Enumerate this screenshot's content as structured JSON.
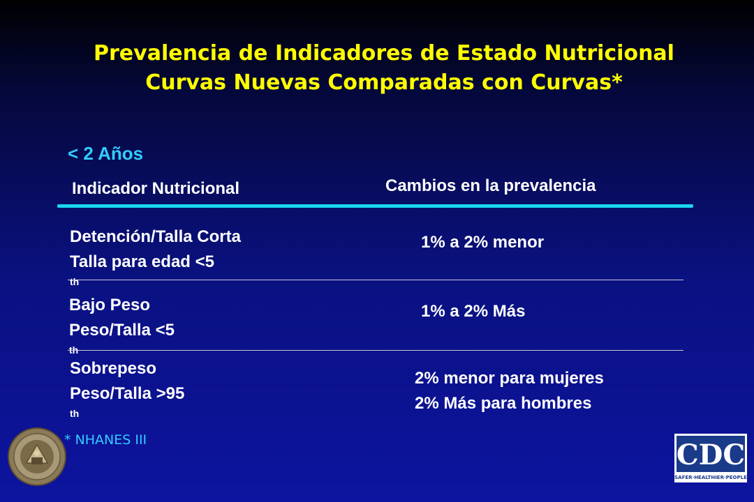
{
  "slide": {
    "title_line1": "Prevalencia de Indicadores de Estado Nutricional",
    "title_line2": "Curvas Nuevas Comparadas con Curvas",
    "title_star": "*",
    "age_group": "< 2 Años",
    "header_indicator": "Indicador Nutricional",
    "header_changes": "Cambios en la prevalencia",
    "rows": [
      {
        "indicator_name": "Detención/Talla Corta",
        "indicator_def": "Talla para edad <5",
        "indicator_sup": "th",
        "change_line1": "1% a 2% menor",
        "change_line2": ""
      },
      {
        "indicator_name": "Bajo Peso",
        "indicator_def": "Peso/Talla <5",
        "indicator_sup": "th",
        "change_line1": "1% a 2% Más",
        "change_line2": ""
      },
      {
        "indicator_name": "Sobrepeso",
        "indicator_def": "Peso/Talla >95",
        "indicator_sup": "th",
        "change_line1": "2% menor para mujeres",
        "change_line2": "2% Más para hombres"
      }
    ],
    "footnote": "* NHANES III",
    "cdc_logo_text": "CDC",
    "cdc_tagline": "SAFER·HEALTHIER·PEOPLE"
  },
  "colors": {
    "title": "#ffff00",
    "accent": "#33ccff",
    "rule": "#19d7f0",
    "text": "#ffffff",
    "background": "#0a1180"
  },
  "icons": {
    "seal": "university-seal-icon",
    "cdc": "cdc-logo-icon"
  }
}
